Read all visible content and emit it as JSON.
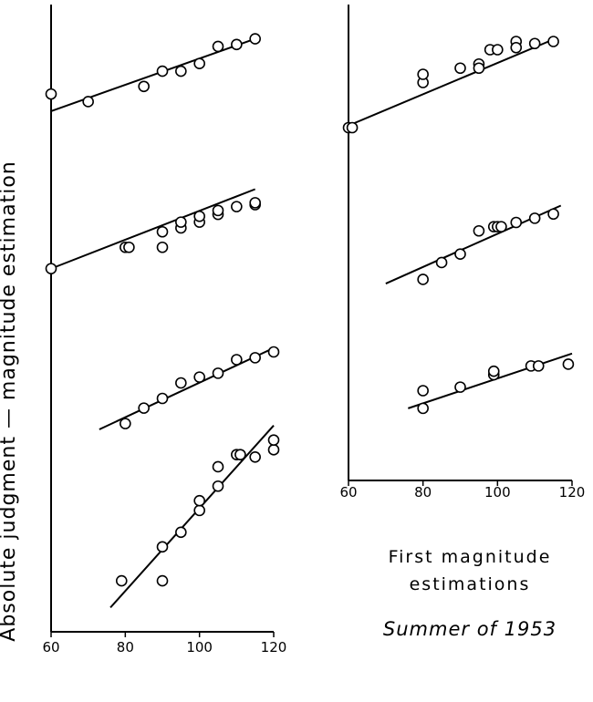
{
  "labels": {
    "y_axis": "Absolute judgment — magnitude estimation",
    "x_axis": "First magnitude\nestimations",
    "subtitle": "Summer of 1953"
  },
  "chart_data": [
    {
      "type": "scatter",
      "xlim": [
        60,
        120
      ],
      "xticks": [
        60,
        80,
        100,
        120
      ],
      "series": [
        {
          "points": [
            [
              60,
              3.3
            ],
            [
              70,
              2.9
            ],
            [
              85,
              3.7
            ],
            [
              90,
              4.5
            ],
            [
              95,
              4.5
            ],
            [
              100,
              4.9
            ],
            [
              105,
              5.8
            ],
            [
              110,
              5.9
            ],
            [
              115,
              6.2
            ]
          ],
          "fit": [
            [
              60,
              2.4
            ],
            [
              115,
              6.2
            ]
          ]
        },
        {
          "points": [
            [
              60,
              1.9
            ],
            [
              80,
              3.0
            ],
            [
              81,
              3.0
            ],
            [
              90,
              3.0
            ],
            [
              90,
              3.8
            ],
            [
              95,
              4.0
            ],
            [
              95,
              4.3
            ],
            [
              100,
              4.3
            ],
            [
              100,
              4.6
            ],
            [
              105,
              4.7
            ],
            [
              105,
              4.9
            ],
            [
              110,
              5.1
            ],
            [
              115,
              5.2
            ],
            [
              115,
              5.3
            ]
          ],
          "fit": [
            [
              60,
              1.9
            ],
            [
              115,
              6.0
            ]
          ]
        },
        {
          "points": [
            [
              80,
              1.9
            ],
            [
              85,
              2.7
            ],
            [
              90,
              3.2
            ],
            [
              95,
              4.0
            ],
            [
              100,
              4.3
            ],
            [
              105,
              4.5
            ],
            [
              110,
              5.2
            ],
            [
              115,
              5.3
            ],
            [
              120,
              5.6
            ]
          ],
          "fit": [
            [
              73,
              1.6
            ],
            [
              120,
              5.8
            ]
          ]
        },
        {
          "points": [
            [
              79,
              2.1
            ],
            [
              90,
              2.1
            ],
            [
              90,
              3.5
            ],
            [
              95,
              4.1
            ],
            [
              100,
              5.0
            ],
            [
              100,
              5.4
            ],
            [
              105,
              6.0
            ],
            [
              105,
              6.8
            ],
            [
              110,
              7.3
            ],
            [
              111,
              7.3
            ],
            [
              115,
              7.2
            ],
            [
              120,
              7.5
            ],
            [
              120,
              7.9
            ]
          ],
          "fit": [
            [
              76,
              1.0
            ],
            [
              120,
              8.5
            ]
          ]
        }
      ]
    },
    {
      "type": "scatter",
      "xlim": [
        60,
        120
      ],
      "xticks": [
        60,
        80,
        100,
        120
      ],
      "series": [
        {
          "points": [
            [
              60,
              2.0
            ],
            [
              61,
              2.0
            ],
            [
              80,
              4.2
            ],
            [
              80,
              4.6
            ],
            [
              90,
              4.9
            ],
            [
              95,
              5.1
            ],
            [
              95,
              4.9
            ],
            [
              98,
              5.8
            ],
            [
              100,
              5.8
            ],
            [
              105,
              6.2
            ],
            [
              105,
              5.9
            ],
            [
              110,
              6.1
            ],
            [
              115,
              6.2
            ]
          ],
          "fit": [
            [
              60,
              2.1
            ],
            [
              115,
              6.3
            ]
          ]
        },
        {
          "points": [
            [
              80,
              2.1
            ],
            [
              85,
              2.9
            ],
            [
              90,
              3.3
            ],
            [
              95,
              4.4
            ],
            [
              99,
              4.6
            ],
            [
              100,
              4.6
            ],
            [
              101,
              4.6
            ],
            [
              105,
              4.8
            ],
            [
              110,
              5.0
            ],
            [
              115,
              5.2
            ]
          ],
          "fit": [
            [
              70,
              1.9
            ],
            [
              117,
              5.6
            ]
          ]
        },
        {
          "points": [
            [
              80,
              1.4
            ],
            [
              80,
              2.4
            ],
            [
              90,
              2.6
            ],
            [
              99,
              3.3
            ],
            [
              99,
              3.5
            ],
            [
              109,
              3.8
            ],
            [
              111,
              3.8
            ],
            [
              119,
              3.9
            ]
          ],
          "fit": [
            [
              76,
              1.4
            ],
            [
              120,
              4.5
            ]
          ]
        }
      ]
    }
  ]
}
